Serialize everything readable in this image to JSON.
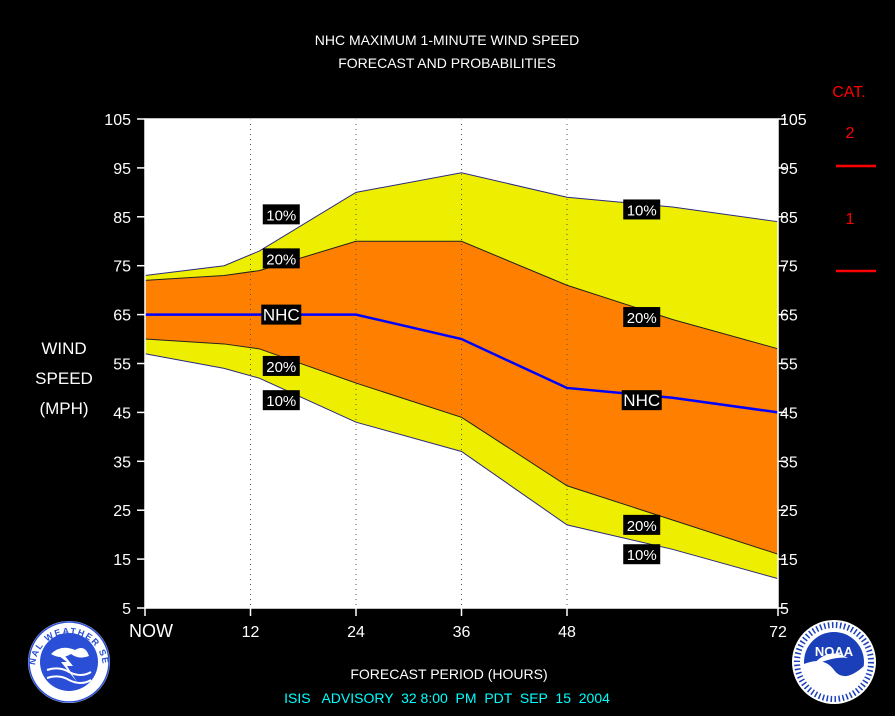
{
  "chart_data": {
    "type": "area",
    "title": "NHC MAXIMUM 1-MINUTE WIND SPEED",
    "subtitle": "FORECAST AND PROBABILITIES",
    "ylabel_lines": [
      "WIND",
      "SPEED",
      "(MPH)"
    ],
    "xlabel": "FORECAST PERIOD (HOURS)",
    "advisory": "ISIS   ADVISORY  32 8:00  PM  PDT  SEP  15  2004",
    "ylim": [
      5,
      105
    ],
    "xlim": [
      0,
      72
    ],
    "y_ticks": [
      5,
      15,
      25,
      35,
      45,
      55,
      65,
      75,
      85,
      95,
      105
    ],
    "x_ticks": [
      {
        "value": 0,
        "label": "NOW"
      },
      {
        "value": 12,
        "label": "12"
      },
      {
        "value": 24,
        "label": "24"
      },
      {
        "value": 36,
        "label": "36"
      },
      {
        "value": 48,
        "label": "48"
      },
      {
        "value": 72,
        "label": "72"
      }
    ],
    "grid": "vertical dotted at 12, 24, 36, 48",
    "x": [
      0,
      9,
      13,
      24,
      36,
      48,
      60,
      72
    ],
    "series": [
      {
        "name": "10%",
        "band": "upper",
        "values": [
          73,
          75,
          78,
          90,
          94,
          89,
          87,
          84
        ]
      },
      {
        "name": "20%",
        "band": "upper",
        "values": [
          72,
          73,
          74,
          80,
          80,
          71,
          64,
          58
        ]
      },
      {
        "name": "NHC",
        "values": [
          65,
          65,
          65,
          65,
          60,
          50,
          48,
          45
        ]
      },
      {
        "name": "20%",
        "band": "lower",
        "values": [
          60,
          59,
          58,
          51,
          44,
          30,
          23,
          16
        ]
      },
      {
        "name": "10%",
        "band": "lower",
        "values": [
          57,
          54,
          52,
          43,
          37,
          22,
          17,
          11
        ]
      }
    ],
    "line_labels": [
      {
        "text": "10%",
        "x": 15.5,
        "y": 85.5
      },
      {
        "text": "20%",
        "x": 15.5,
        "y": 76.5
      },
      {
        "text": "NHC",
        "x": 15.5,
        "y": 65
      },
      {
        "text": "20%",
        "x": 15.5,
        "y": 54.5
      },
      {
        "text": "10%",
        "x": 15.5,
        "y": 47.5
      },
      {
        "text": "10%",
        "x": 56.5,
        "y": 86.5
      },
      {
        "text": "20%",
        "x": 56.5,
        "y": 64.5
      },
      {
        "text": "NHC",
        "x": 56.5,
        "y": 47.5
      },
      {
        "text": "20%",
        "x": 56.5,
        "y": 22
      },
      {
        "text": "10%",
        "x": 56.5,
        "y": 16
      }
    ],
    "category_legend": {
      "heading": "CAT.",
      "items": [
        {
          "label": "2",
          "threshold_mph": 96
        },
        {
          "label": "1",
          "threshold_mph": 74
        }
      ]
    },
    "colors": {
      "background": "#000000",
      "plot_bg": "#ffffff",
      "band_10": "#eeee00",
      "band_20": "#ff8000",
      "nhc_line": "#0000ff",
      "boundary": "#222222",
      "text": "#ffffff",
      "category": "#ff0000",
      "advisory": "#00ffff",
      "label_box": "#000000"
    }
  },
  "logos": {
    "left": "NATIONAL WEATHER SERVICE",
    "right": "NOAA"
  }
}
